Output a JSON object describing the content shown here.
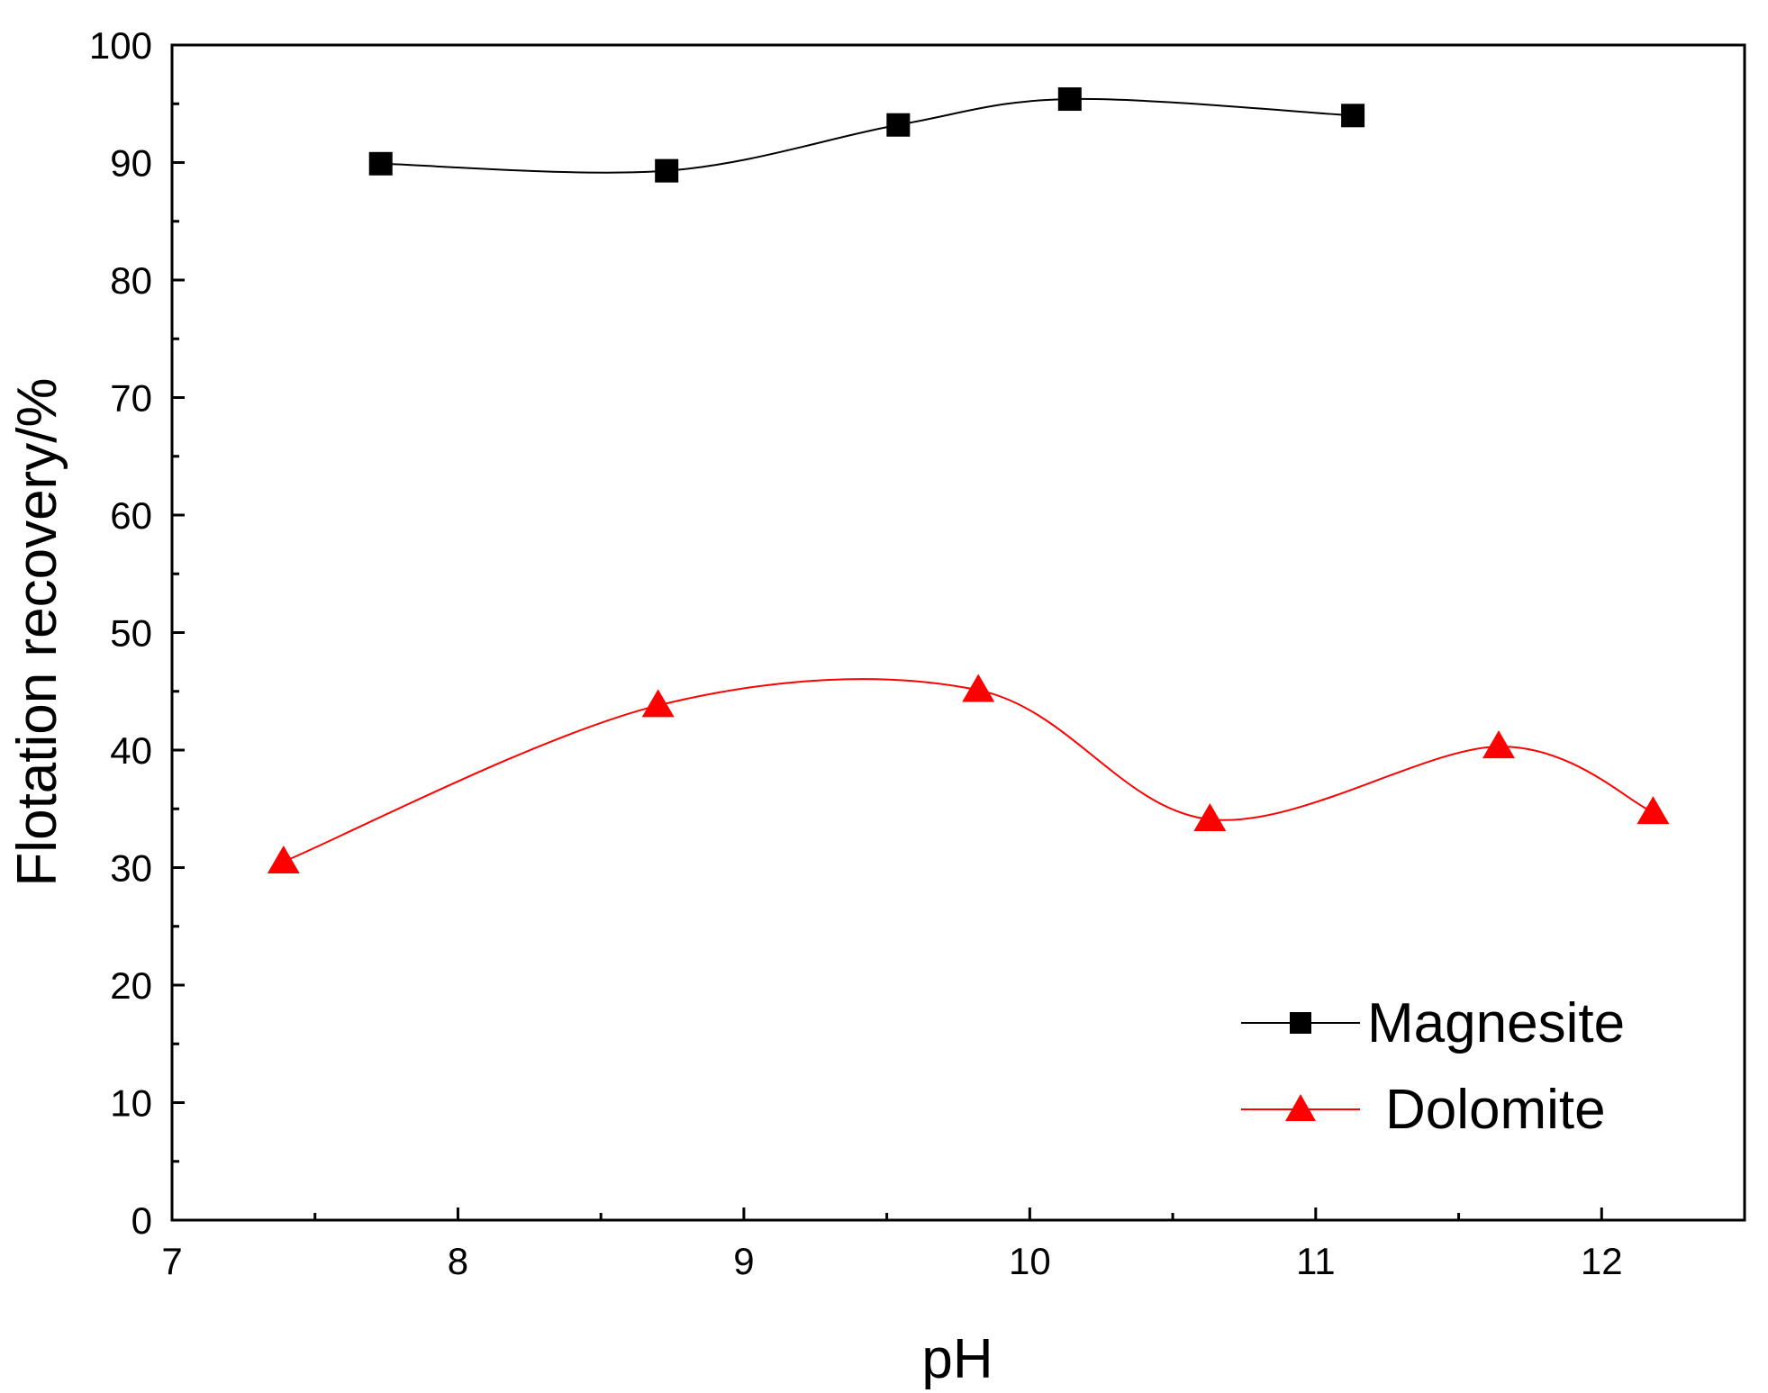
{
  "chart_data": {
    "type": "line",
    "title": "",
    "xlabel": "pH",
    "ylabel": "Flotation recovery/%",
    "xlim": [
      7,
      12.5
    ],
    "ylim": [
      0,
      100
    ],
    "x_ticks": [
      "7",
      "8",
      "9",
      "10",
      "11",
      "12"
    ],
    "y_ticks": [
      "0",
      "10",
      "20",
      "30",
      "40",
      "50",
      "60",
      "70",
      "80",
      "90",
      "100"
    ],
    "grid": false,
    "legend_position": "bottom-right",
    "series": [
      {
        "name": "Magnesite",
        "marker": "square",
        "color": "#000000",
        "x": [
          7.73,
          8.73,
          9.54,
          10.14,
          11.13
        ],
        "y": [
          89.9,
          89.3,
          93.2,
          95.4,
          94.0
        ]
      },
      {
        "name": "Dolomite",
        "marker": "triangle",
        "color": "#ff0000",
        "x": [
          7.39,
          8.7,
          9.82,
          10.63,
          11.64,
          12.18
        ],
        "y": [
          30.5,
          43.8,
          45.1,
          34.1,
          40.3,
          34.7
        ]
      }
    ]
  }
}
